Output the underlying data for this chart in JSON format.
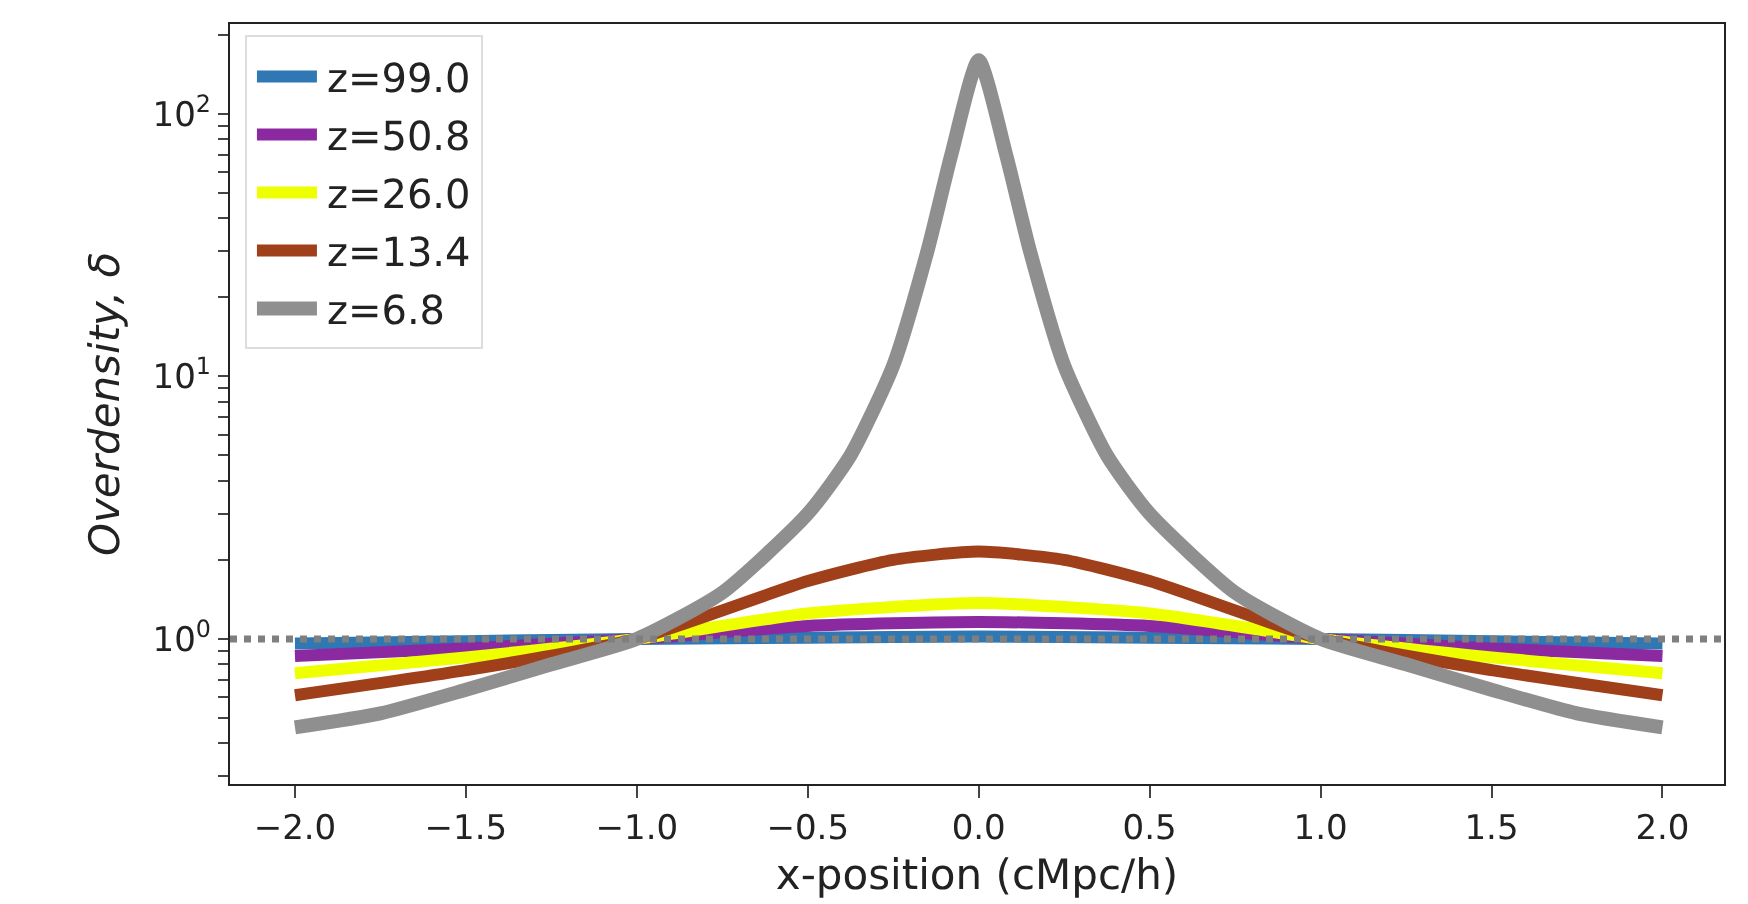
{
  "chart_data": {
    "type": "line",
    "xlabel": "x-position (cMpc/h)",
    "ylabel": "Overdensity, δ",
    "log": "y",
    "grid": false,
    "legend": "top left",
    "line_style": "solid",
    "marker": "none",
    "xlim": [
      -2.19,
      2.18
    ],
    "xticks": [
      {
        "value": -2,
        "label": "−2.0"
      },
      {
        "value": -1.5,
        "label": "−1.5"
      },
      {
        "value": -1,
        "label": "−1.0"
      },
      {
        "value": -0.5,
        "label": "−0.5"
      },
      {
        "value": 0,
        "label": "0.0"
      },
      {
        "value": 0.5,
        "label": "0.5"
      },
      {
        "value": 1,
        "label": "1.0"
      },
      {
        "value": 1.5,
        "label": "1.5"
      },
      {
        "value": 2,
        "label": "2.0"
      }
    ],
    "ylim": [
      0.28,
      220
    ],
    "yticks": [
      {
        "value": 0.3,
        "label": null
      },
      {
        "value": 0.4,
        "label": null
      },
      {
        "value": 0.5,
        "label": null
      },
      {
        "value": 0.6,
        "label": null
      },
      {
        "value": 0.7,
        "label": null
      },
      {
        "value": 0.8,
        "label": null
      },
      {
        "value": 0.9,
        "label": null
      },
      {
        "value": 1,
        "label": "10$^{0}$"
      },
      {
        "value": 2,
        "label": null
      },
      {
        "value": 3,
        "label": null
      },
      {
        "value": 4,
        "label": null
      },
      {
        "value": 5,
        "label": null
      },
      {
        "value": 6,
        "label": null
      },
      {
        "value": 7,
        "label": null
      },
      {
        "value": 8,
        "label": null
      },
      {
        "value": 9,
        "label": null
      },
      {
        "value": 10,
        "label": "10$^{1}$"
      },
      {
        "value": 20,
        "label": null
      },
      {
        "value": 30,
        "label": null
      },
      {
        "value": 40,
        "label": null
      },
      {
        "value": 50,
        "label": null
      },
      {
        "value": 60,
        "label": null
      },
      {
        "value": 70,
        "label": null
      },
      {
        "value": 80,
        "label": null
      },
      {
        "value": 90,
        "label": null
      },
      {
        "value": 100,
        "label": "10$^{2}$"
      },
      {
        "value": 200,
        "label": null
      }
    ],
    "ref_lines": [
      {
        "axis": "y",
        "value": 1,
        "color": "#7f7f7f",
        "line_style": "dotted"
      }
    ],
    "series": [
      {
        "name": "z=99.0",
        "color": "#2f78b4",
        "x": [
          -2,
          -1.5,
          -1,
          -0.5,
          0,
          0.5,
          1,
          1.5,
          2
        ],
        "values": [
          0.96,
          0.98,
          1.0,
          1.01,
          1.02,
          1.01,
          1.0,
          0.98,
          0.96
        ]
      },
      {
        "name": "z=50.8",
        "color": "#8b2aa0",
        "x": [
          -2,
          -1.5,
          -1,
          -0.5,
          0,
          0.5,
          1,
          1.5,
          2
        ],
        "values": [
          0.86,
          0.92,
          1.0,
          1.12,
          1.16,
          1.12,
          1.0,
          0.92,
          0.86
        ]
      },
      {
        "name": "z=26.0",
        "color": "#eeff00",
        "x": [
          -2,
          -1.5,
          -1,
          -0.5,
          0,
          0.5,
          1,
          1.5,
          2
        ],
        "values": [
          0.74,
          0.85,
          1.0,
          1.25,
          1.37,
          1.25,
          1.0,
          0.85,
          0.74
        ]
      },
      {
        "name": "z=13.4",
        "color": "#a0401a",
        "x": [
          -2,
          -1.5,
          -1,
          -0.5,
          -0.25,
          0,
          0.25,
          0.5,
          1,
          1.5,
          2
        ],
        "values": [
          0.61,
          0.76,
          1.0,
          1.66,
          2.0,
          2.15,
          2.0,
          1.66,
          1.0,
          0.76,
          0.61
        ]
      },
      {
        "name": "z=6.8",
        "color": "#8f8f8f",
        "x": [
          -2,
          -1.75,
          -1.5,
          -1.25,
          -1,
          -0.75,
          -0.5,
          -0.375,
          -0.25,
          -0.15,
          -0.08,
          0,
          0.08,
          0.15,
          0.25,
          0.375,
          0.5,
          0.75,
          1,
          1.25,
          1.5,
          1.75,
          2
        ],
        "values": [
          0.46,
          0.52,
          0.64,
          0.8,
          1.0,
          1.5,
          3.0,
          5.0,
          11,
          30,
          70,
          160,
          70,
          30,
          11,
          5.0,
          3.0,
          1.5,
          1.0,
          0.8,
          0.64,
          0.52,
          0.46
        ]
      }
    ]
  }
}
